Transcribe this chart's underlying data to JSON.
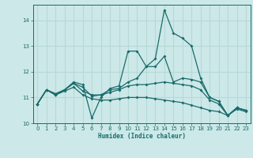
{
  "title": "",
  "xlabel": "Humidex (Indice chaleur)",
  "bg_color": "#cce8e8",
  "grid_color": "#b8d8d8",
  "line_color": "#1a6b6b",
  "xmin": -0.5,
  "xmax": 23.5,
  "ymin": 10.0,
  "ymax": 14.6,
  "yticks": [
    10,
    11,
    12,
    13,
    14
  ],
  "xticks": [
    0,
    1,
    2,
    3,
    4,
    5,
    6,
    7,
    8,
    9,
    10,
    11,
    12,
    13,
    14,
    15,
    16,
    17,
    18,
    19,
    20,
    21,
    22,
    23
  ],
  "series": [
    {
      "x": [
        0,
        1,
        2,
        3,
        4,
        5,
        6,
        7,
        8,
        9,
        10,
        11,
        12,
        13,
        14,
        15,
        16,
        17,
        18,
        19,
        20,
        21,
        22,
        23
      ],
      "y": [
        10.75,
        11.3,
        11.1,
        11.3,
        11.6,
        11.5,
        10.2,
        11.0,
        11.35,
        11.45,
        12.8,
        12.8,
        12.2,
        12.5,
        14.4,
        13.5,
        13.3,
        13.0,
        11.75,
        11.0,
        10.85,
        10.3,
        10.6,
        10.5
      ]
    },
    {
      "x": [
        0,
        1,
        2,
        3,
        4,
        5,
        6,
        7,
        8,
        9,
        10,
        11,
        12,
        13,
        14,
        15,
        16,
        17,
        18,
        19,
        20,
        21,
        22,
        23
      ],
      "y": [
        10.75,
        11.3,
        11.1,
        11.3,
        11.55,
        11.4,
        11.05,
        11.1,
        11.3,
        11.35,
        11.6,
        11.75,
        12.2,
        12.2,
        12.6,
        11.6,
        11.75,
        11.7,
        11.6,
        11.0,
        10.85,
        10.3,
        10.6,
        10.5
      ]
    },
    {
      "x": [
        0,
        1,
        2,
        3,
        4,
        5,
        6,
        7,
        8,
        9,
        10,
        11,
        12,
        13,
        14,
        15,
        16,
        17,
        18,
        19,
        20,
        21,
        22,
        23
      ],
      "y": [
        10.75,
        11.3,
        11.15,
        11.3,
        11.55,
        11.25,
        11.1,
        11.1,
        11.2,
        11.3,
        11.45,
        11.5,
        11.5,
        11.55,
        11.6,
        11.55,
        11.5,
        11.45,
        11.3,
        10.9,
        10.75,
        10.3,
        10.6,
        10.5
      ]
    },
    {
      "x": [
        0,
        1,
        2,
        3,
        4,
        5,
        6,
        7,
        8,
        9,
        10,
        11,
        12,
        13,
        14,
        15,
        16,
        17,
        18,
        19,
        20,
        21,
        22,
        23
      ],
      "y": [
        10.75,
        11.3,
        11.1,
        11.25,
        11.4,
        11.1,
        10.95,
        10.9,
        10.9,
        10.95,
        11.0,
        11.0,
        11.0,
        10.95,
        10.9,
        10.85,
        10.8,
        10.7,
        10.6,
        10.5,
        10.45,
        10.3,
        10.55,
        10.45
      ]
    }
  ]
}
